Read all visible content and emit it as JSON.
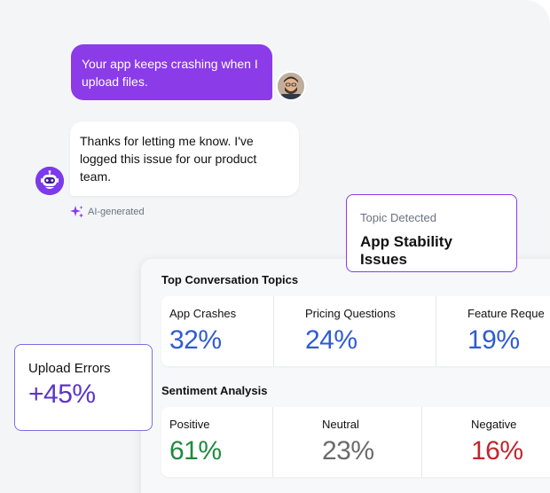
{
  "chat": {
    "user_message": "Your app keeps crashing when I upload files.",
    "bot_message": "Thanks for letting me know. I've logged this issue for our product team.",
    "ai_tag": "AI-generated",
    "accent_color": "#8b3be8"
  },
  "topic_card": {
    "label": "Topic Detected",
    "value": "App Stability Issues"
  },
  "top_topics": {
    "title": "Top Conversation Topics",
    "items": [
      {
        "label": "App Crashes",
        "value": "32%",
        "color": "#2f5bd3"
      },
      {
        "label": "Pricing Questions",
        "value": "24%",
        "color": "#2f5bd3"
      },
      {
        "label": "Feature Reque",
        "value": "19%",
        "color": "#2f5bd3"
      }
    ]
  },
  "sentiment": {
    "title": "Sentiment Analysis",
    "items": [
      {
        "label": "Positive",
        "value": "61%",
        "color": "#1e8a3e"
      },
      {
        "label": "Neutral",
        "value": "23%",
        "color": "#6b6b6b"
      },
      {
        "label": "Negative",
        "value": "16%",
        "color": "#c0262d"
      }
    ]
  },
  "upload_card": {
    "label": "Upload Errors",
    "value": "+45%"
  }
}
